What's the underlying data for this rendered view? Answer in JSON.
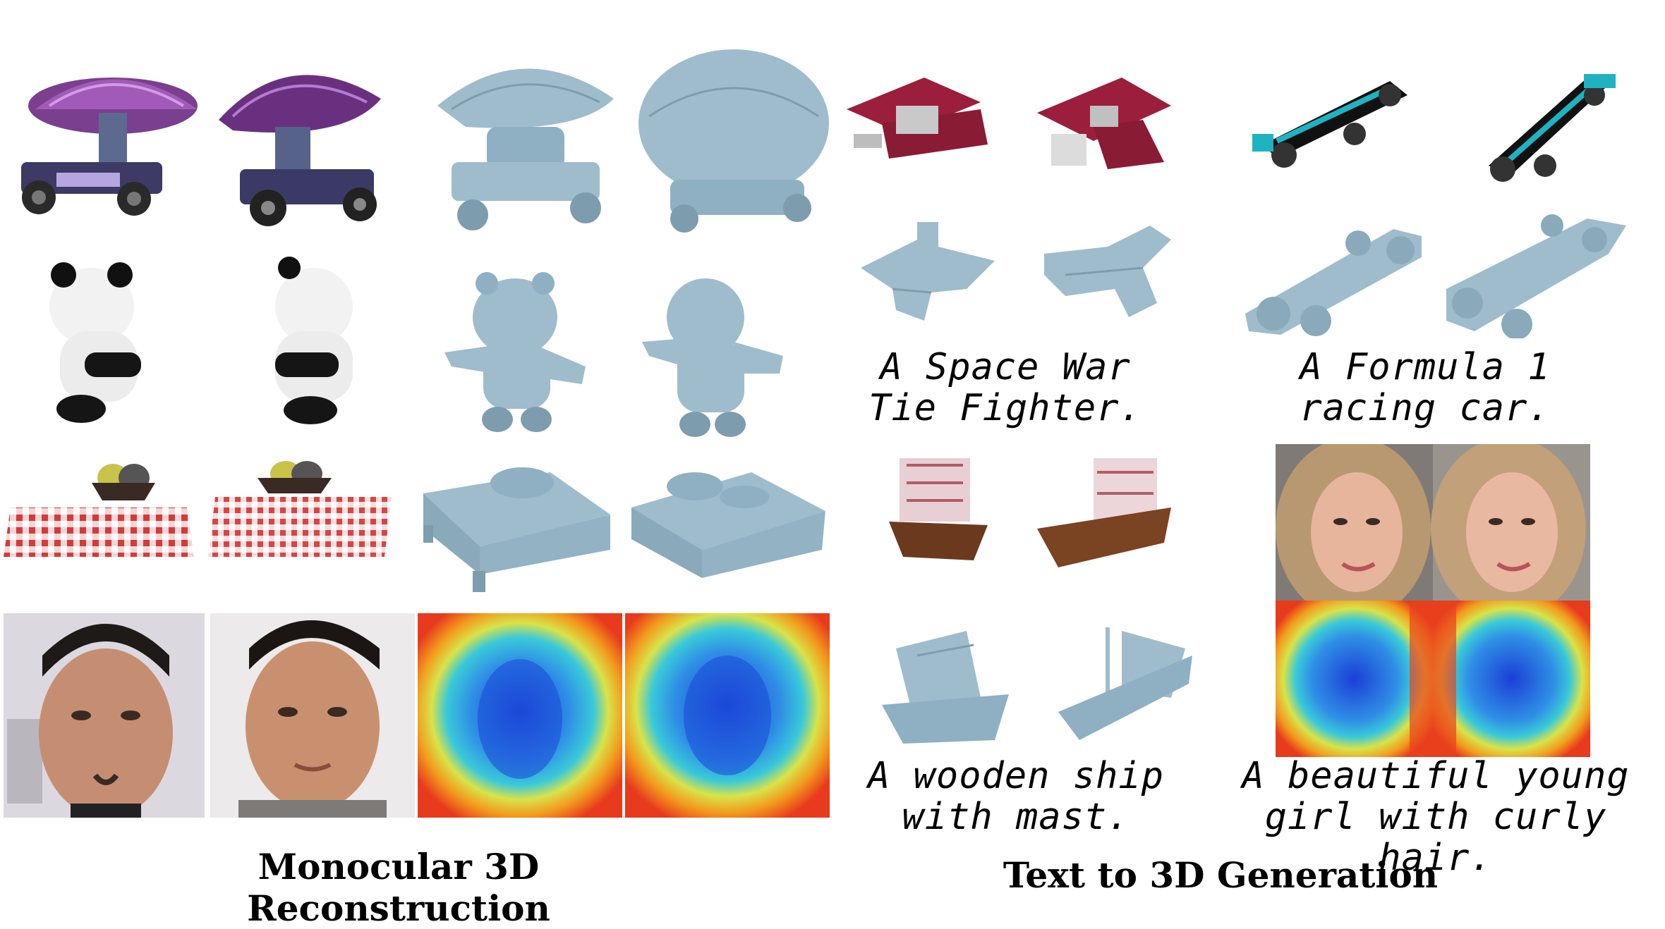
{
  "sections": {
    "left_title": "Monocular 3D Reconstruction",
    "right_title": "Text to 3D Generation"
  },
  "prompts": {
    "tie_fighter": [
      "A Space War",
      "Tie Fighter."
    ],
    "formula1": [
      "A Formula 1",
      "racing car."
    ],
    "ship": [
      "A wooden ship",
      "with mast."
    ],
    "girl": [
      "A beautiful young",
      "girl with curly hair."
    ]
  },
  "colors": {
    "mesh": "#9fbccc",
    "mesh_dark": "#7d9cae",
    "mushroom_purple": "#7a3f8f",
    "ship_red": "#9b1e3c",
    "f1_teal": "#1fb3c2",
    "depth_far": "#e83a1c",
    "depth_near": "#1b3fd6"
  }
}
